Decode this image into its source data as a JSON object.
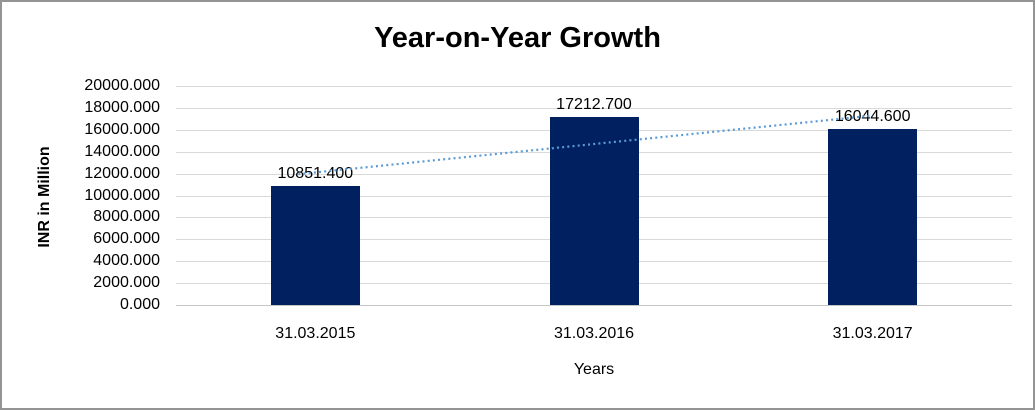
{
  "chart_data": {
    "type": "bar",
    "title": "Year-on-Year Growth",
    "categories": [
      "31.03.2015",
      "31.03.2016",
      "31.03.2017"
    ],
    "values": [
      10851.4,
      17212.7,
      16044.6
    ],
    "data_labels": [
      "10851.400",
      "17212.700",
      "16044.600"
    ],
    "xlabel": "Years",
    "ylabel": "INR in Million",
    "ylim": [
      0,
      20000
    ],
    "ytick_step": 2000,
    "ytick_labels": [
      "0.000",
      "2000.000",
      "4000.000",
      "6000.000",
      "8000.000",
      "10000.000",
      "12000.000",
      "14000.000",
      "16000.000",
      "18000.000",
      "20000.000"
    ],
    "grid": true,
    "legend_position": "none",
    "trendline": {
      "kind": "linear",
      "style": "dotted"
    },
    "colors": {
      "bar": "#002060",
      "trendline": "#5B9BD5",
      "gridline": "#D9D9D9",
      "axis_line": "#C6C6C6",
      "text": "#000000"
    }
  }
}
